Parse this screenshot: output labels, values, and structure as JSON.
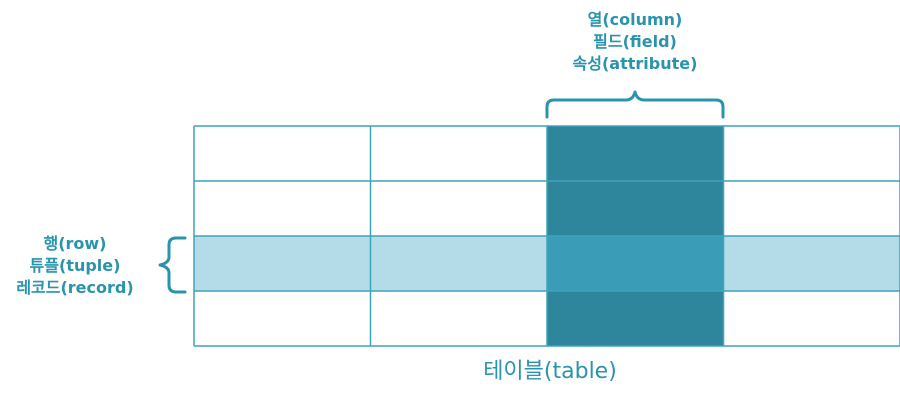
{
  "column_labels": [
    "열(column)",
    "필드(field)",
    "속성(attribute)"
  ],
  "row_labels": [
    "행(row)",
    "튜플(tuple)",
    "레코드(record)"
  ],
  "table_label": "테이블(table)",
  "grid": {
    "rows": 4,
    "cols": 4,
    "highlighted_row": 2,
    "highlighted_col": 2
  },
  "colors": {
    "accent": "#2a93ad",
    "grid_line": "#3ea4bb",
    "cell": "#ffffff",
    "row_highlight": "#b3dce8",
    "col_highlight": "#2e869d",
    "intersection": "#3a9cb7"
  }
}
